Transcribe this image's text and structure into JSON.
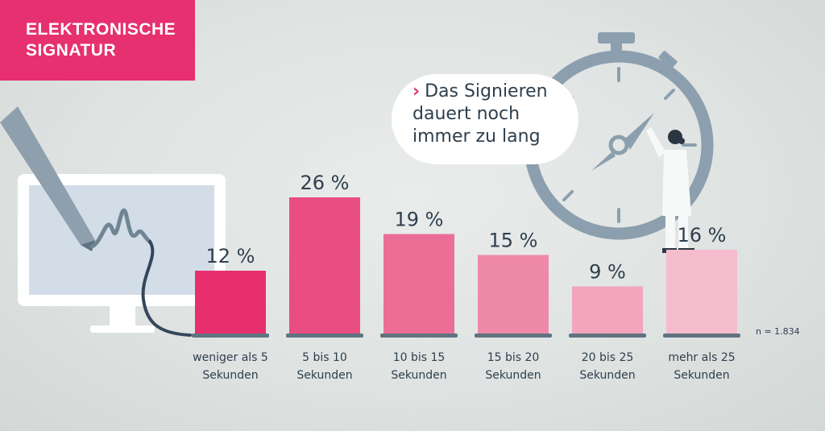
{
  "header": {
    "title": "ELEKTRONISCHE\nSIGNATUR"
  },
  "bubble": {
    "arrow": "›",
    "text": "Das Signieren dauert noch immer zu lang"
  },
  "sample_note": "n = 1.834",
  "chart_data": {
    "type": "bar",
    "categories": [
      "weniger als 5\nSekunden",
      "5 bis 10\nSekunden",
      "10 bis 15\nSekunden",
      "15 bis 20\nSekunden",
      "20 bis 25\nSekunden",
      "mehr als 25\nSekunden"
    ],
    "values": [
      12,
      26,
      19,
      15,
      9,
      16
    ],
    "value_labels": [
      "12 %",
      "26 %",
      "19 %",
      "15 %",
      "9 %",
      "16 %"
    ],
    "unit": "%",
    "ylim": [
      0,
      26
    ],
    "colors": [
      "#e72f6e",
      "#e94d82",
      "#ec6e97",
      "#ef89a9",
      "#f2a5bd",
      "#f5bccd"
    ],
    "grid": false,
    "legend": "none"
  },
  "colors": {
    "accent": "#e6306f",
    "text": "#2e3f4d",
    "baseline": "#5f7380",
    "illustration": "#8c9fae"
  }
}
